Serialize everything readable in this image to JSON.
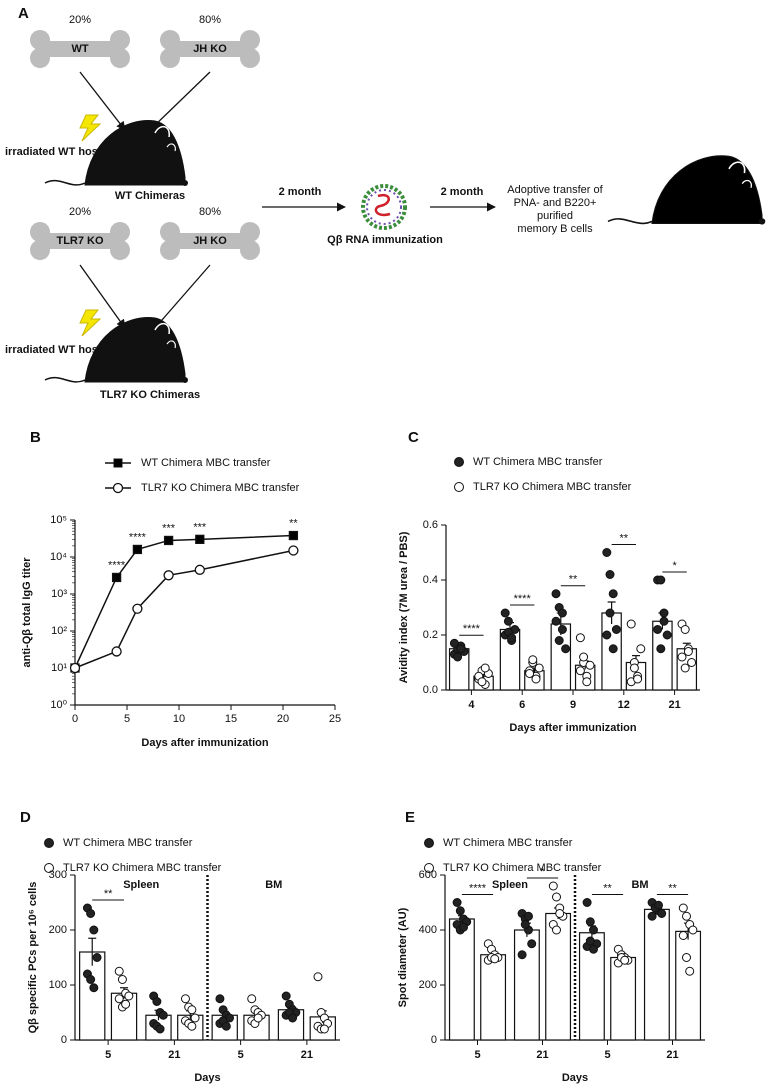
{
  "diagram": {
    "panel": "A",
    "bones": [
      {
        "percent": "20%",
        "label": "WT"
      },
      {
        "percent": "80%",
        "label": "JH KO"
      },
      {
        "percent": "20%",
        "label": "TLR7 KO"
      },
      {
        "percent": "80%",
        "label": "JH KO"
      }
    ],
    "hosts": [
      "irradiated WT hosts",
      "irradiated WT hosts"
    ],
    "chimeras": [
      "WT Chimeras",
      "TLR7 KO Chimeras"
    ],
    "steps": [
      "2 month",
      "2 month"
    ],
    "immunization": "Qβ RNA immunization",
    "transfer": [
      "Adoptive transfer of",
      "PNA- and B220+",
      "purified",
      "memory B cells"
    ]
  },
  "chart_data": [
    {
      "panel": "B",
      "type": "line",
      "log_y": true,
      "x": [
        0,
        4,
        6,
        9,
        12,
        21
      ],
      "series": [
        {
          "name": "WT Chimera MBC transfer",
          "color": "#000000",
          "marker": "square",
          "values": [
            10,
            2800,
            16000,
            28000,
            30000,
            38000
          ]
        },
        {
          "name": "TLR7 KO Chimera MBC transfer",
          "color": "#ffffff",
          "marker": "circle",
          "values": [
            10,
            28,
            400,
            3200,
            4500,
            15000
          ]
        }
      ],
      "xlim": [
        0,
        25
      ],
      "xticks": [
        0,
        5,
        10,
        15,
        20,
        25
      ],
      "ylim": [
        1,
        100000
      ],
      "yticks": [
        {
          "value": 1,
          "label": "10⁰"
        },
        {
          "value": 10,
          "label": "10¹"
        },
        {
          "value": 100,
          "label": "10²"
        },
        {
          "value": 1000,
          "label": "10³"
        },
        {
          "value": 10000,
          "label": "10⁴"
        },
        {
          "value": 100000,
          "label": "10⁵"
        }
      ],
      "xlabel": "Days after immunization",
      "ylabel": "anti-Qβ total IgG titer",
      "annotations": [
        {
          "x": 4,
          "text": "****"
        },
        {
          "x": 6,
          "text": "****"
        },
        {
          "x": 9,
          "text": "***"
        },
        {
          "x": 12,
          "text": "***"
        },
        {
          "x": 21,
          "text": "**"
        }
      ]
    },
    {
      "panel": "C",
      "type": "bar",
      "categories": [
        "4",
        "6",
        "9",
        "12",
        "21"
      ],
      "series": [
        {
          "name": "WT Chimera MBC transfer",
          "color": "#222222",
          "values": [
            0.15,
            0.22,
            0.24,
            0.28,
            0.25
          ],
          "errors": [
            0.01,
            0.025,
            0.04,
            0.04,
            0.03
          ],
          "points": [
            [
              0.13,
              0.15,
              0.16,
              0.14,
              0.17,
              0.12,
              0.15
            ],
            [
              0.2,
              0.25,
              0.18,
              0.22,
              0.28,
              0.21,
              0.19
            ],
            [
              0.35,
              0.3,
              0.22,
              0.15,
              0.25,
              0.18,
              0.28
            ],
            [
              0.5,
              0.42,
              0.35,
              0.22,
              0.2,
              0.28,
              0.15
            ],
            [
              0.4,
              0.4,
              0.25,
              0.2,
              0.22,
              0.15,
              0.28
            ]
          ]
        },
        {
          "name": "TLR7 KO Chimera MBC transfer",
          "color": "#ffffff",
          "values": [
            0.05,
            0.07,
            0.09,
            0.1,
            0.15
          ],
          "errors": [
            0.01,
            0.01,
            0.015,
            0.025,
            0.02
          ],
          "points": [
            [
              0.04,
              0.07,
              0.02,
              0.06,
              0.05,
              0.03,
              0.08
            ],
            [
              0.07,
              0.1,
              0.05,
              0.08,
              0.06,
              0.11,
              0.04
            ],
            [
              0.19,
              0.1,
              0.05,
              0.09,
              0.07,
              0.12,
              0.03
            ],
            [
              0.24,
              0.1,
              0.05,
              0.15,
              0.03,
              0.08,
              0.04
            ],
            [
              0.24,
              0.22,
              0.15,
              0.1,
              0.12,
              0.08,
              0.14
            ]
          ]
        }
      ],
      "ylim": [
        0,
        0.6
      ],
      "yticks": [
        {
          "value": 0,
          "label": "0.0"
        },
        0.2,
        0.4,
        0.6
      ],
      "xlabel": "Days after immunization",
      "ylabel": "Avidity index (7M urea / PBS)",
      "annotations": [
        {
          "category": 0,
          "text": "****"
        },
        {
          "category": 1,
          "text": "****"
        },
        {
          "category": 2,
          "text": "**"
        },
        {
          "category": 3,
          "text": "**"
        },
        {
          "category": 4,
          "text": "*"
        }
      ]
    },
    {
      "panel": "D",
      "type": "bar",
      "categories": [
        "5",
        "21",
        "5",
        "21"
      ],
      "groups": [
        "Spleen",
        "BM"
      ],
      "series": [
        {
          "name": "WT Chimera MBC transfer",
          "color": "#222222",
          "values": [
            160,
            45,
            45,
            55
          ],
          "errors": [
            25,
            9,
            7,
            7
          ],
          "points": [
            [
              240,
              230,
              200,
              150,
              120,
              110,
              95
            ],
            [
              80,
              70,
              50,
              45,
              30,
              25,
              20
            ],
            [
              75,
              55,
              45,
              40,
              30,
              35,
              25
            ],
            [
              80,
              65,
              55,
              50,
              45,
              50,
              40
            ]
          ]
        },
        {
          "name": "TLR7 KO Chimera MBC transfer",
          "color": "#ffffff",
          "values": [
            85,
            45,
            45,
            42
          ],
          "errors": [
            10,
            8,
            6,
            11
          ],
          "points": [
            [
              125,
              110,
              85,
              80,
              75,
              60,
              65
            ],
            [
              75,
              60,
              55,
              40,
              35,
              30,
              25
            ],
            [
              75,
              55,
              50,
              45,
              35,
              30,
              40
            ],
            [
              115,
              50,
              40,
              30,
              25,
              20,
              20
            ]
          ]
        }
      ],
      "ylim": [
        0,
        300
      ],
      "yticks": [
        0,
        100,
        200,
        300
      ],
      "xlabel": "Days",
      "ylabel": "Qβ specific PCs per 10⁶ cells",
      "annotations": [
        {
          "category": 0,
          "text": "**"
        }
      ]
    },
    {
      "panel": "E",
      "type": "bar",
      "categories": [
        "5",
        "21",
        "5",
        "21"
      ],
      "groups": [
        "Spleen",
        "BM"
      ],
      "series": [
        {
          "name": "WT Chimera MBC transfer",
          "color": "#222222",
          "values": [
            440,
            400,
            390,
            475
          ],
          "errors": [
            12,
            25,
            25,
            10
          ],
          "points": [
            [
              500,
              470,
              440,
              430,
              420,
              400,
              410
            ],
            [
              460,
              440,
              400,
              350,
              310,
              420,
              450
            ],
            [
              500,
              430,
              400,
              350,
              340,
              360,
              330
            ],
            [
              500,
              480,
              470,
              460,
              450,
              480,
              490
            ]
          ]
        },
        {
          "name": "TLR7 KO Chimera MBC transfer",
          "color": "#ffffff",
          "values": [
            310,
            460,
            300,
            395
          ],
          "errors": [
            10,
            20,
            10,
            30
          ],
          "points": [
            [
              350,
              330,
              310,
              300,
              290,
              300,
              295
            ],
            [
              560,
              520,
              480,
              450,
              420,
              400,
              460
            ],
            [
              330,
              310,
              300,
              290,
              280,
              300,
              290
            ],
            [
              480,
              450,
              420,
              400,
              380,
              300,
              250
            ]
          ]
        }
      ],
      "ylim": [
        0,
        600
      ],
      "yticks": [
        0,
        200,
        400,
        600
      ],
      "xlabel": "Days",
      "ylabel": "Spot diameter (AU)",
      "annotations": [
        {
          "category": 0,
          "text": "****"
        },
        {
          "category": 1,
          "text": "*"
        },
        {
          "category": 2,
          "text": "**"
        },
        {
          "category": 3,
          "text": "**"
        }
      ]
    }
  ]
}
